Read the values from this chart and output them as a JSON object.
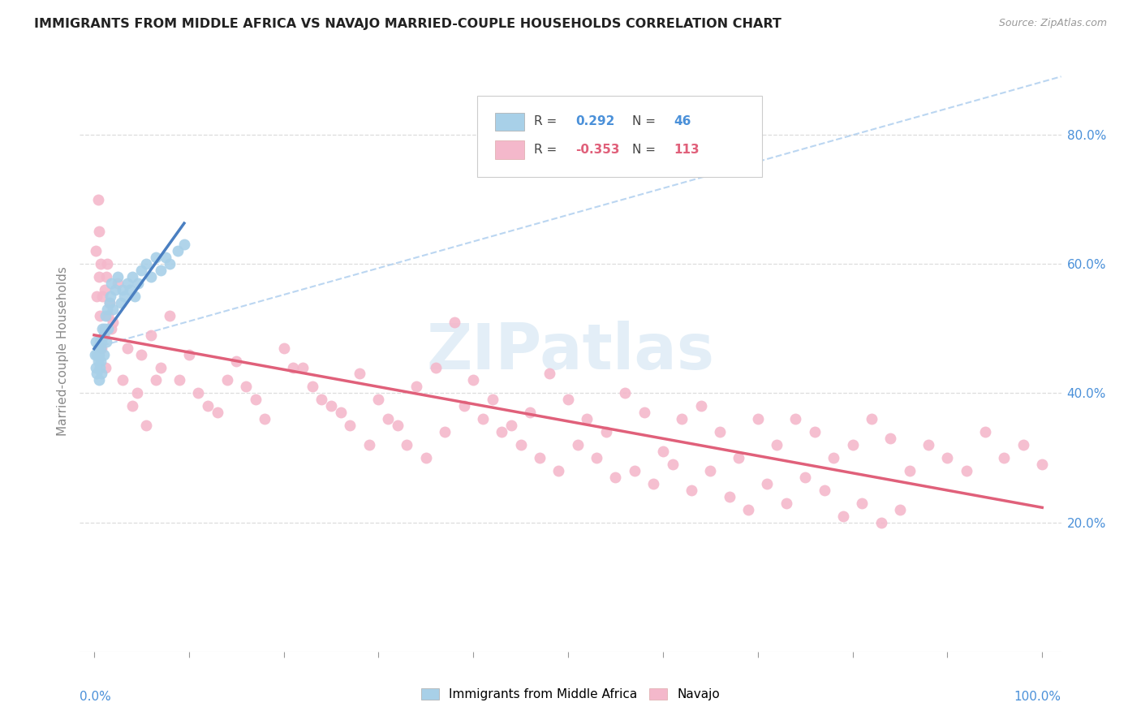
{
  "title": "IMMIGRANTS FROM MIDDLE AFRICA VS NAVAJO MARRIED-COUPLE HOUSEHOLDS CORRELATION CHART",
  "source": "Source: ZipAtlas.com",
  "ylabel": "Married-couple Households",
  "right_yticks": [
    "20.0%",
    "40.0%",
    "60.0%",
    "80.0%"
  ],
  "right_ytick_vals": [
    0.2,
    0.4,
    0.6,
    0.8
  ],
  "legend_label1": "Immigrants from Middle Africa",
  "legend_label2": "Navajo",
  "color_blue": "#a8d0e8",
  "color_pink": "#f4b8cb",
  "color_blue_line": "#4a7fc1",
  "color_pink_line": "#e0607a",
  "color_blue_text": "#4a90d9",
  "color_pink_text": "#e0607a",
  "color_dashed": "#aaccee",
  "watermark_color": "#c8dff0",
  "R1": "0.292",
  "N1": "46",
  "R2": "-0.353",
  "N2": "113",
  "xlim": [
    -0.015,
    1.02
  ],
  "ylim": [
    0.0,
    0.93
  ],
  "blue_x": [
    0.001,
    0.002,
    0.002,
    0.003,
    0.003,
    0.004,
    0.004,
    0.005,
    0.005,
    0.006,
    0.006,
    0.007,
    0.007,
    0.008,
    0.008,
    0.009,
    0.01,
    0.01,
    0.011,
    0.012,
    0.013,
    0.014,
    0.015,
    0.016,
    0.017,
    0.018,
    0.02,
    0.022,
    0.025,
    0.028,
    0.03,
    0.032,
    0.035,
    0.038,
    0.04,
    0.043,
    0.046,
    0.05,
    0.055,
    0.06,
    0.065,
    0.07,
    0.075,
    0.08,
    0.088,
    0.095
  ],
  "blue_y": [
    0.46,
    0.44,
    0.48,
    0.43,
    0.46,
    0.45,
    0.47,
    0.42,
    0.46,
    0.48,
    0.44,
    0.47,
    0.45,
    0.48,
    0.43,
    0.5,
    0.46,
    0.49,
    0.5,
    0.52,
    0.48,
    0.53,
    0.5,
    0.54,
    0.55,
    0.57,
    0.53,
    0.56,
    0.58,
    0.54,
    0.56,
    0.55,
    0.57,
    0.56,
    0.58,
    0.55,
    0.57,
    0.59,
    0.6,
    0.58,
    0.61,
    0.59,
    0.61,
    0.6,
    0.62,
    0.63
  ],
  "pink_x": [
    0.002,
    0.003,
    0.004,
    0.005,
    0.005,
    0.006,
    0.007,
    0.008,
    0.009,
    0.01,
    0.011,
    0.012,
    0.013,
    0.014,
    0.015,
    0.016,
    0.018,
    0.02,
    0.025,
    0.03,
    0.035,
    0.04,
    0.045,
    0.05,
    0.055,
    0.06,
    0.065,
    0.07,
    0.08,
    0.09,
    0.1,
    0.11,
    0.12,
    0.13,
    0.14,
    0.15,
    0.16,
    0.17,
    0.18,
    0.2,
    0.22,
    0.24,
    0.26,
    0.28,
    0.3,
    0.32,
    0.34,
    0.36,
    0.38,
    0.4,
    0.42,
    0.44,
    0.46,
    0.48,
    0.5,
    0.52,
    0.54,
    0.56,
    0.58,
    0.6,
    0.62,
    0.64,
    0.66,
    0.68,
    0.7,
    0.72,
    0.74,
    0.76,
    0.78,
    0.8,
    0.82,
    0.84,
    0.86,
    0.88,
    0.9,
    0.92,
    0.94,
    0.96,
    0.98,
    1.0,
    0.21,
    0.23,
    0.25,
    0.27,
    0.29,
    0.31,
    0.33,
    0.35,
    0.37,
    0.39,
    0.41,
    0.43,
    0.45,
    0.47,
    0.49,
    0.51,
    0.53,
    0.55,
    0.57,
    0.59,
    0.61,
    0.63,
    0.65,
    0.67,
    0.69,
    0.71,
    0.73,
    0.75,
    0.77,
    0.79,
    0.81,
    0.83,
    0.85
  ],
  "pink_y": [
    0.62,
    0.55,
    0.7,
    0.58,
    0.65,
    0.52,
    0.6,
    0.47,
    0.55,
    0.49,
    0.56,
    0.44,
    0.58,
    0.6,
    0.52,
    0.54,
    0.5,
    0.51,
    0.57,
    0.42,
    0.47,
    0.38,
    0.4,
    0.46,
    0.35,
    0.49,
    0.42,
    0.44,
    0.52,
    0.42,
    0.46,
    0.4,
    0.38,
    0.37,
    0.42,
    0.45,
    0.41,
    0.39,
    0.36,
    0.47,
    0.44,
    0.39,
    0.37,
    0.43,
    0.39,
    0.35,
    0.41,
    0.44,
    0.51,
    0.42,
    0.39,
    0.35,
    0.37,
    0.43,
    0.39,
    0.36,
    0.34,
    0.4,
    0.37,
    0.31,
    0.36,
    0.38,
    0.34,
    0.3,
    0.36,
    0.32,
    0.36,
    0.34,
    0.3,
    0.32,
    0.36,
    0.33,
    0.28,
    0.32,
    0.3,
    0.28,
    0.34,
    0.3,
    0.32,
    0.29,
    0.44,
    0.41,
    0.38,
    0.35,
    0.32,
    0.36,
    0.32,
    0.3,
    0.34,
    0.38,
    0.36,
    0.34,
    0.32,
    0.3,
    0.28,
    0.32,
    0.3,
    0.27,
    0.28,
    0.26,
    0.29,
    0.25,
    0.28,
    0.24,
    0.22,
    0.26,
    0.23,
    0.27,
    0.25,
    0.21,
    0.23,
    0.2,
    0.22
  ]
}
